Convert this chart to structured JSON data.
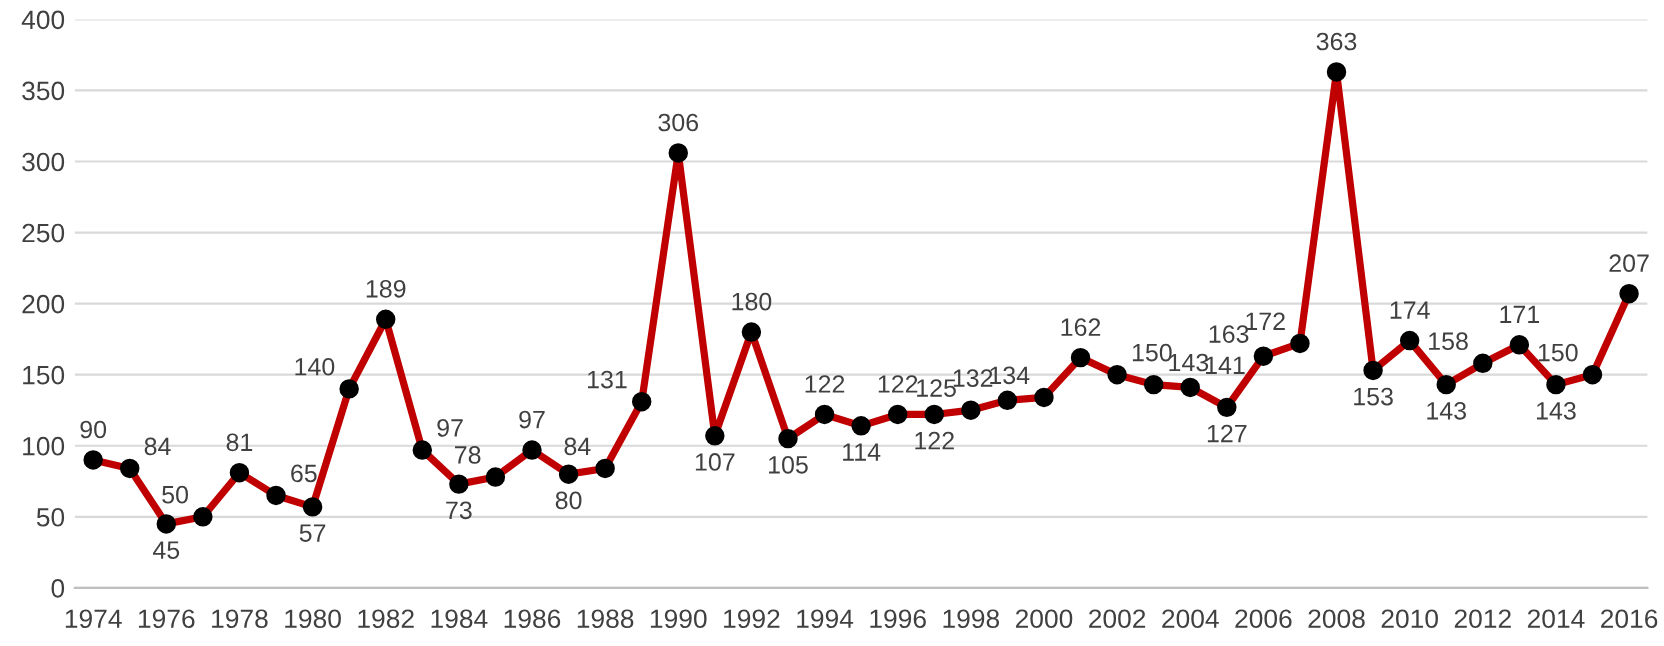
{
  "chart_data": {
    "type": "line",
    "categories": [
      "1974",
      null,
      "1976",
      null,
      "1978",
      null,
      "1980",
      null,
      "1982",
      null,
      "1984",
      null,
      "1986",
      null,
      "1988",
      null,
      "1990",
      null,
      "1992",
      null,
      "1994",
      null,
      "1996",
      null,
      "1998",
      null,
      "2000",
      null,
      "2002",
      null,
      "2004",
      null,
      "2006",
      null,
      "2008",
      null,
      "2010",
      null,
      "2012",
      null,
      "2014",
      null,
      "2016"
    ],
    "series": [
      {
        "color": "#c00000",
        "values": [
          90,
          84,
          45,
          50,
          81,
          65,
          57,
          140,
          189,
          97,
          73,
          78,
          97,
          80,
          84,
          131,
          306,
          107,
          180,
          105,
          122,
          114,
          122,
          122,
          125,
          132,
          134,
          162,
          150,
          143,
          141,
          127,
          163,
          172,
          363,
          153,
          174,
          143,
          158,
          171,
          143,
          150,
          207
        ]
      }
    ],
    "ylim": [
      0,
      400
    ],
    "yticks": [
      0,
      50,
      100,
      150,
      200,
      250,
      300,
      350,
      400
    ],
    "grid": "y",
    "marker": "circle",
    "line_style": "solid",
    "data_labels": true,
    "legend": false
  }
}
